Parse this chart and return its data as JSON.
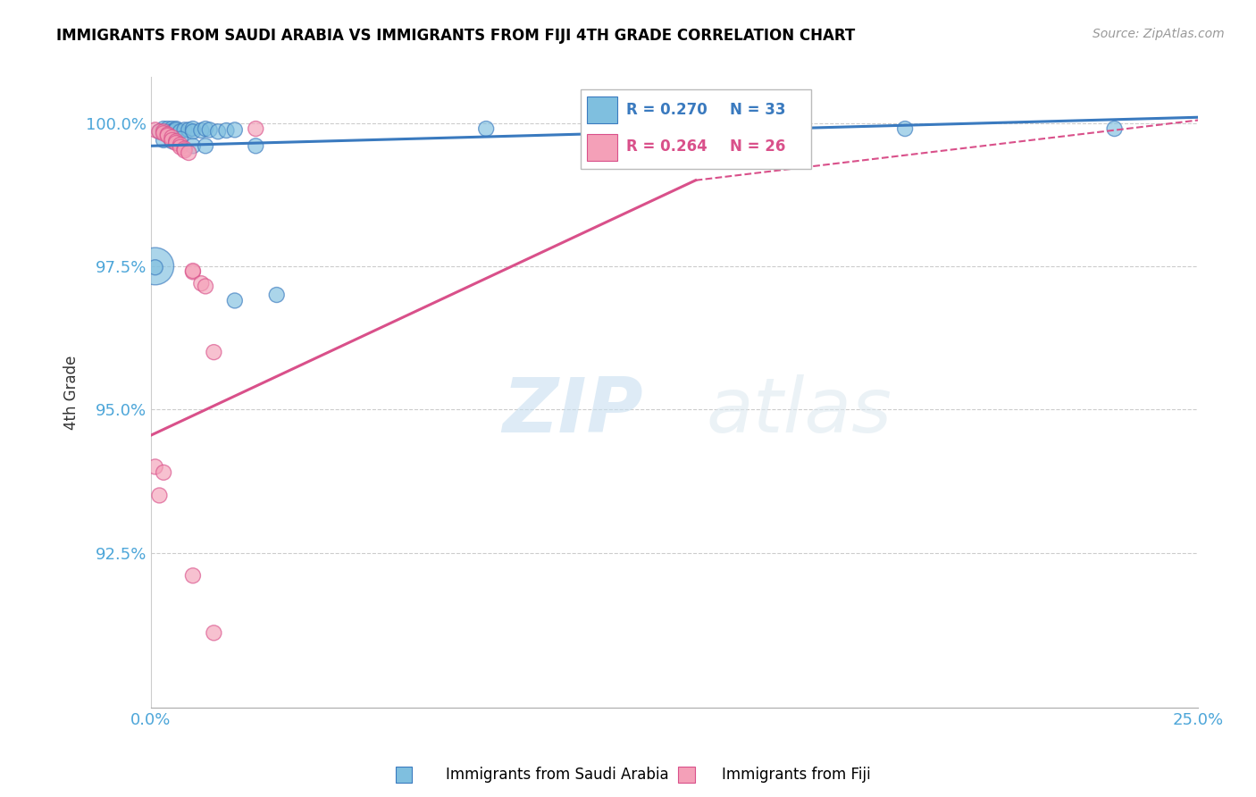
{
  "title": "IMMIGRANTS FROM SAUDI ARABIA VS IMMIGRANTS FROM FIJI 4TH GRADE CORRELATION CHART",
  "source": "Source: ZipAtlas.com",
  "ylabel": "4th Grade",
  "xlim": [
    0.0,
    0.25
  ],
  "ylim": [
    0.898,
    1.008
  ],
  "yticks": [
    0.925,
    0.95,
    0.975,
    1.0
  ],
  "ytick_labels": [
    "92.5%",
    "95.0%",
    "97.5%",
    "100.0%"
  ],
  "xticks": [
    0.0,
    0.05,
    0.1,
    0.15,
    0.2,
    0.25
  ],
  "xtick_labels": [
    "0.0%",
    "",
    "",
    "",
    "",
    "25.0%"
  ],
  "legend_label_blue": "Immigrants from Saudi Arabia",
  "legend_label_pink": "Immigrants from Fiji",
  "R_blue": 0.27,
  "N_blue": 33,
  "R_pink": 0.264,
  "N_pink": 26,
  "color_blue": "#7fbfdf",
  "color_pink": "#f4a0b8",
  "color_line_blue": "#3a7abf",
  "color_line_pink": "#d9508a",
  "color_axis_text": "#4da6d9",
  "watermark_zip": "ZIP",
  "watermark_atlas": "atlas",
  "blue_points": [
    [
      0.002,
      0.9985
    ],
    [
      0.003,
      0.999
    ],
    [
      0.004,
      0.999
    ],
    [
      0.004,
      0.9985
    ],
    [
      0.005,
      0.999
    ],
    [
      0.005,
      0.9985
    ],
    [
      0.006,
      0.999
    ],
    [
      0.006,
      0.9988
    ],
    [
      0.007,
      0.9985
    ],
    [
      0.008,
      0.9988
    ],
    [
      0.009,
      0.9988
    ],
    [
      0.01,
      0.999
    ],
    [
      0.01,
      0.9985
    ],
    [
      0.012,
      0.9987
    ],
    [
      0.013,
      0.999
    ],
    [
      0.014,
      0.9988
    ],
    [
      0.016,
      0.9985
    ],
    [
      0.018,
      0.9987
    ],
    [
      0.02,
      0.9988
    ],
    [
      0.003,
      0.997
    ],
    [
      0.005,
      0.9968
    ],
    [
      0.007,
      0.9972
    ],
    [
      0.01,
      0.996
    ],
    [
      0.013,
      0.996
    ],
    [
      0.025,
      0.996
    ],
    [
      0.001,
      0.975
    ],
    [
      0.001,
      0.9748
    ],
    [
      0.03,
      0.97
    ],
    [
      0.02,
      0.969
    ],
    [
      0.08,
      0.999
    ],
    [
      0.13,
      0.9955
    ],
    [
      0.18,
      0.999
    ],
    [
      0.23,
      0.999
    ]
  ],
  "blue_sizes": [
    150,
    150,
    150,
    150,
    150,
    150,
    150,
    150,
    150,
    150,
    150,
    150,
    150,
    150,
    150,
    150,
    150,
    150,
    150,
    150,
    150,
    150,
    150,
    150,
    150,
    900,
    150,
    150,
    150,
    150,
    150,
    150,
    150
  ],
  "pink_points": [
    [
      0.001,
      0.9988
    ],
    [
      0.002,
      0.9985
    ],
    [
      0.003,
      0.9985
    ],
    [
      0.003,
      0.9982
    ],
    [
      0.004,
      0.998
    ],
    [
      0.004,
      0.9978
    ],
    [
      0.005,
      0.9975
    ],
    [
      0.005,
      0.997
    ],
    [
      0.006,
      0.9968
    ],
    [
      0.006,
      0.9965
    ],
    [
      0.007,
      0.9962
    ],
    [
      0.007,
      0.9958
    ],
    [
      0.008,
      0.9955
    ],
    [
      0.008,
      0.9952
    ],
    [
      0.009,
      0.9948
    ],
    [
      0.01,
      0.974
    ],
    [
      0.01,
      0.9742
    ],
    [
      0.012,
      0.972
    ],
    [
      0.013,
      0.9715
    ],
    [
      0.015,
      0.96
    ],
    [
      0.001,
      0.94
    ],
    [
      0.003,
      0.939
    ],
    [
      0.002,
      0.935
    ],
    [
      0.01,
      0.921
    ],
    [
      0.015,
      0.911
    ],
    [
      0.025,
      0.999
    ]
  ],
  "pink_sizes": [
    150,
    150,
    150,
    150,
    150,
    150,
    150,
    150,
    150,
    150,
    150,
    150,
    150,
    150,
    150,
    150,
    150,
    150,
    150,
    150,
    150,
    150,
    150,
    150,
    150,
    150
  ],
  "blue_line": {
    "x0": 0.0,
    "x1": 0.25,
    "y0": 0.996,
    "y1": 1.001
  },
  "pink_line_solid": {
    "x0": 0.0,
    "x1": 0.13,
    "y0": 0.9455,
    "y1": 0.99
  },
  "pink_line_dash": {
    "x0": 0.13,
    "x1": 0.25,
    "y0": 0.99,
    "y1": 1.0005
  }
}
